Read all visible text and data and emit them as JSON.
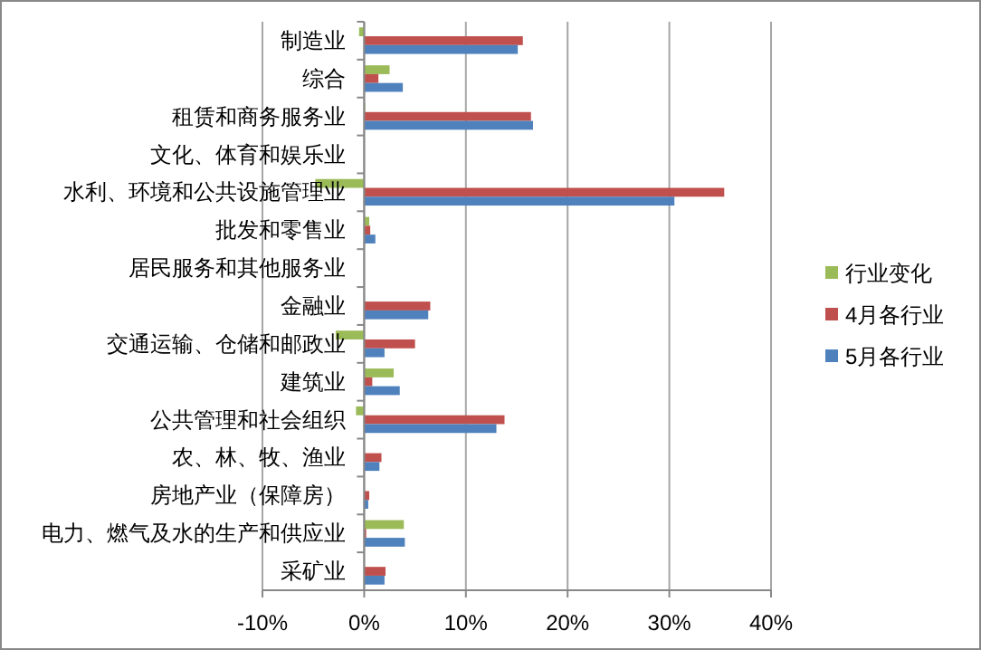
{
  "chart_data": {
    "type": "bar",
    "orientation": "horizontal",
    "categories": [
      "制造业",
      "综合",
      "租赁和商务服务业",
      "文化、体育和娱乐业",
      "水利、环境和公共设施管理业",
      "批发和零售业",
      "居民服务和其他服务业",
      "金融业",
      "交通运输、仓储和邮政业",
      "建筑业",
      "公共管理和社会组织",
      "农、林、牧、渔业",
      "房地产业（保障房）",
      "电力、燃气及水的生产和供应业",
      "采矿业"
    ],
    "series": [
      {
        "name": "行业变化",
        "color": "#9bbb59",
        "values": [
          -0.5,
          2.5,
          0.1,
          0,
          -4.8,
          0.5,
          0,
          null,
          -2.8,
          2.9,
          -0.8,
          null,
          null,
          3.9,
          null
        ]
      },
      {
        "name": "4月各行业",
        "color": "#c0504d",
        "values": [
          15.6,
          1.4,
          16.4,
          0,
          35.4,
          0.6,
          0,
          6.5,
          5.0,
          0.8,
          13.8,
          1.7,
          0.5,
          0.2,
          2.1
        ]
      },
      {
        "name": "5月各行业",
        "color": "#4f81bd",
        "values": [
          15.1,
          3.8,
          16.6,
          0,
          30.5,
          1.1,
          0,
          6.3,
          2.0,
          3.5,
          13.0,
          1.5,
          0.4,
          4.0,
          2.0
        ]
      }
    ],
    "xlim": [
      -10,
      40
    ],
    "xticks": [
      {
        "value": -10,
        "label": "-10%"
      },
      {
        "value": 0,
        "label": "0%"
      },
      {
        "value": 10,
        "label": "10%"
      },
      {
        "value": 20,
        "label": "20%"
      },
      {
        "value": 30,
        "label": "30%"
      },
      {
        "value": 40,
        "label": "40%"
      }
    ],
    "grid": "x",
    "legend": "right"
  }
}
